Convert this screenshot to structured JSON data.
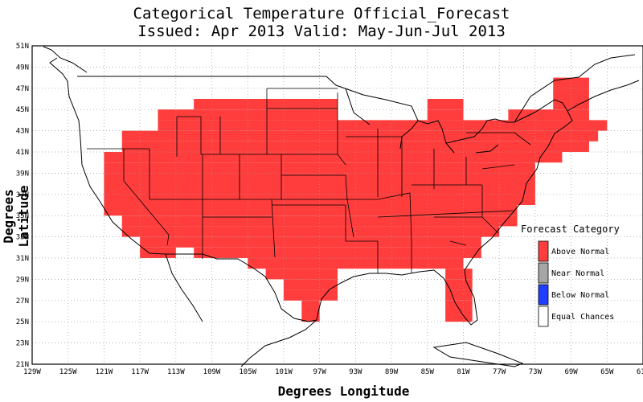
{
  "title_line1": "Categorical Temperature Official_Forecast",
  "title_line2": "Issued: Apr 2013 Valid: May-Jun-Jul 2013",
  "xlabel": "Degrees Longitude",
  "ylabel": "Degrees Latitude",
  "x_ticks": [
    "129W",
    "125W",
    "121W",
    "117W",
    "113W",
    "109W",
    "105W",
    "101W",
    "97W",
    "93W",
    "89W",
    "85W",
    "81W",
    "77W",
    "73W",
    "69W",
    "65W",
    "61W"
  ],
  "y_ticks": [
    "21N",
    "23N",
    "25N",
    "27N",
    "29N",
    "31N",
    "33N",
    "35N",
    "37N",
    "39N",
    "41N",
    "43N",
    "45N",
    "47N",
    "49N",
    "51N"
  ],
  "legend": {
    "title": "Forecast Category",
    "items": [
      {
        "label": "Above Normal",
        "color": "#ff3d3d"
      },
      {
        "label": "Near Normal",
        "color": "#a6a6a6"
      },
      {
        "label": "Below Normal",
        "color": "#1f3fff"
      },
      {
        "label": "Equal Chances",
        "color": "#ffffff"
      }
    ]
  },
  "colors": {
    "above_normal": "#ff3d3d",
    "grid": "#9a9a9a",
    "lines": "#000000"
  },
  "chart_data": {
    "type": "heatmap",
    "xlim": [
      -129,
      -61
    ],
    "ylim": [
      21,
      51
    ],
    "grid": true,
    "category": "Above Normal",
    "rows": [
      {
        "lat": [
          46,
          48
        ],
        "lon": [
          [
            -71,
            -67
          ]
        ]
      },
      {
        "lat": [
          45,
          46
        ],
        "lon": [
          [
            -111,
            -95
          ],
          [
            -85,
            -81
          ],
          [
            -71,
            -67
          ]
        ]
      },
      {
        "lat": [
          44,
          45
        ],
        "lon": [
          [
            -115,
            -95
          ],
          [
            -85,
            -81
          ],
          [
            -76,
            -67
          ]
        ]
      },
      {
        "lat": [
          43,
          44
        ],
        "lon": [
          [
            -115,
            -65
          ]
        ]
      },
      {
        "lat": [
          42,
          43
        ],
        "lon": [
          [
            -119,
            -66
          ]
        ]
      },
      {
        "lat": [
          41,
          42
        ],
        "lon": [
          [
            -119,
            -67
          ]
        ]
      },
      {
        "lat": [
          40,
          41
        ],
        "lon": [
          [
            -121,
            -70
          ]
        ]
      },
      {
        "lat": [
          36,
          40
        ],
        "lon": [
          [
            -121,
            -73
          ]
        ]
      },
      {
        "lat": [
          35,
          36
        ],
        "lon": [
          [
            -121,
            -75
          ]
        ]
      },
      {
        "lat": [
          34,
          35
        ],
        "lon": [
          [
            -119,
            -75
          ]
        ]
      },
      {
        "lat": [
          33,
          34
        ],
        "lon": [
          [
            -119,
            -77
          ]
        ]
      },
      {
        "lat": [
          32,
          33
        ],
        "lon": [
          [
            -117,
            -79
          ]
        ]
      },
      {
        "lat": [
          31,
          32
        ],
        "lon": [
          [
            -117,
            -113
          ],
          [
            -111,
            -79
          ]
        ]
      },
      {
        "lat": [
          30,
          31
        ],
        "lon": [
          [
            -105,
            -81
          ]
        ]
      },
      {
        "lat": [
          29,
          30
        ],
        "lon": [
          [
            -103,
            -95
          ],
          [
            -83,
            -80
          ]
        ]
      },
      {
        "lat": [
          28,
          29
        ],
        "lon": [
          [
            -101,
            -95
          ],
          [
            -83,
            -80
          ]
        ]
      },
      {
        "lat": [
          27,
          28
        ],
        "lon": [
          [
            -101,
            -95
          ],
          [
            -83,
            -80
          ]
        ]
      },
      {
        "lat": [
          26,
          27
        ],
        "lon": [
          [
            -99,
            -97
          ],
          [
            -83,
            -80
          ]
        ]
      },
      {
        "lat": [
          25,
          26
        ],
        "lon": [
          [
            -99,
            -97
          ],
          [
            -83,
            -80
          ]
        ]
      }
    ]
  }
}
